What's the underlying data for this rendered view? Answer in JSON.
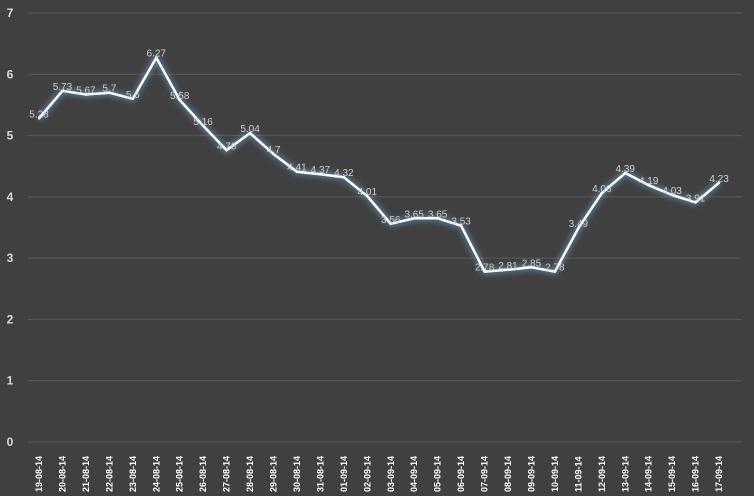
{
  "chart_data": {
    "type": "line",
    "title": "",
    "xlabel": "",
    "ylabel": "",
    "ylim": [
      0,
      7
    ],
    "yticks": [
      0,
      1,
      2,
      3,
      4,
      5,
      6,
      7
    ],
    "grid": true,
    "legend": "none",
    "categories": [
      "19-08-14",
      "20-08-14",
      "21-08-14",
      "22-08-14",
      "23-08-14",
      "24-08-14",
      "25-08-14",
      "26-08-14",
      "27-08-14",
      "28-08-14",
      "29-08-14",
      "30-08-14",
      "31-08-14",
      "01-09-14",
      "02-09-14",
      "03-09-14",
      "04-09-14",
      "05-09-14",
      "06-09-14",
      "07-09-14",
      "08-09-14",
      "09-09-14",
      "10-09-14",
      "11-09-14",
      "12-09-14",
      "13-09-14",
      "14-09-14",
      "15-09-14",
      "16-09-14",
      "17-09-14"
    ],
    "series": [
      {
        "values": [
          5.28,
          5.73,
          5.67,
          5.7,
          5.6,
          6.27,
          5.58,
          5.16,
          4.76,
          5.04,
          4.7,
          4.41,
          4.37,
          4.32,
          4.01,
          3.56,
          3.65,
          3.65,
          3.53,
          2.78,
          2.81,
          2.85,
          2.78,
          3.49,
          4.06,
          4.39,
          4.19,
          4.03,
          3.91,
          4.23
        ],
        "labels": [
          "5.28",
          "5.73",
          "5.67",
          "5.7",
          "5.6",
          "6.27",
          "5.58",
          "5.16",
          "4.76",
          "5.04",
          "4.7",
          "4.41",
          "4.37",
          "4.32",
          "4.01",
          "3.56",
          "3.65",
          "3.65",
          "3.53",
          "2.78",
          "2.81",
          "2.85",
          "2.78",
          "3.49",
          "4.06",
          "4.39",
          "4.19",
          "4.03",
          "3.91",
          "4.23"
        ],
        "color": "#ffffff",
        "glow_color": "#6fa8dc"
      }
    ],
    "colors": {
      "background": "#404040",
      "grid": "#5a5a5a",
      "tick_text": "#d9d9d9",
      "data_label": "#d0d0d0"
    }
  }
}
